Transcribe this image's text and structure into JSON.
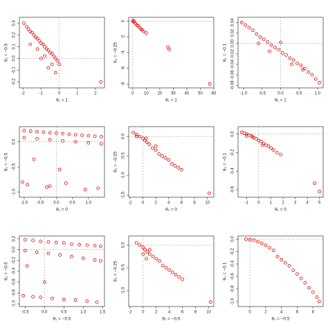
{
  "chart_data": [
    {
      "type": "scatter",
      "x_label": "θ₁ = 1",
      "y_label": "θ₂ = −0.5",
      "color": "#e00000",
      "hline": 0,
      "vline": 0,
      "x": [
        -1.95,
        -1.8,
        -1.7,
        -1.6,
        -1.5,
        -1.4,
        -1.3,
        -1.2,
        -1.1,
        -1.0,
        -0.9,
        -0.8,
        -0.7,
        -0.6,
        -0.5,
        -0.4,
        -0.3,
        -0.2,
        -0.1,
        0.0,
        -1.6,
        -1.2,
        -0.8,
        -0.4,
        -0.2,
        -1.0,
        -0.6,
        2.3
      ],
      "y": [
        0.3,
        0.27,
        0.25,
        0.23,
        0.22,
        0.2,
        0.18,
        0.17,
        0.15,
        0.13,
        0.12,
        0.1,
        0.08,
        0.07,
        0.05,
        0.04,
        0.02,
        0.0,
        -0.02,
        -0.05,
        0.12,
        0.08,
        0.02,
        -0.05,
        -0.12,
        0.0,
        -0.08,
        -0.2
      ],
      "xlim": [
        -2.2,
        2.5
      ],
      "xticks": [
        -2,
        -1,
        0,
        1,
        2
      ],
      "ylim": [
        -0.25,
        0.35
      ],
      "yticks": [
        -0.2,
        -0.1,
        {
          "value": 0,
          "label": "0.0"
        },
        0.1,
        0.2,
        0.3
      ]
    },
    {
      "type": "scatter",
      "x_label": "θ₁ = 1",
      "y_label": "θ₂ = −0.25",
      "color": "#e00000",
      "hline": 0,
      "vline": 0,
      "x": [
        0,
        0.5,
        1,
        2,
        3,
        4,
        5,
        6,
        7,
        8,
        10,
        26,
        27,
        57
      ],
      "y": [
        0,
        0.1,
        -0.1,
        -0.3,
        -0.5,
        -0.6,
        -0.8,
        -1,
        -1.1,
        -1.3,
        -1.5,
        -3.3,
        -3.6,
        -8
      ],
      "xlim": [
        -3,
        60
      ],
      "xticks": [
        0,
        10,
        20,
        30,
        40,
        50,
        60
      ],
      "ylim": [
        -8.5,
        0.5
      ],
      "yticks": [
        0,
        -2,
        -4,
        -6,
        -8
      ]
    },
    {
      "type": "scatter",
      "x_label": "θ₁ = 1",
      "y_label": "θ₂ = −0.1",
      "color": "#e00000",
      "hline": 0,
      "vline": 0,
      "x": [
        -1.05,
        -0.95,
        -0.85,
        -0.75,
        -0.65,
        -0.55,
        -0.45,
        -0.35,
        -0.25,
        -0.15,
        -0.05,
        0.05,
        0.15,
        0.25,
        0.35,
        0.45,
        0.55,
        0.65,
        0.75,
        0.85,
        0.95,
        1.05,
        -0.6,
        -0.3,
        0,
        0.3,
        0.6
      ],
      "y": [
        0.04,
        0.035,
        0.03,
        0.025,
        0.018,
        0.012,
        0.008,
        0.003,
        -0.003,
        -0.008,
        -0.012,
        -0.018,
        -0.022,
        -0.028,
        -0.032,
        -0.038,
        -0.042,
        -0.048,
        -0.055,
        -0.06,
        -0.068,
        -0.075,
        0.0,
        -0.015,
        0.002,
        -0.04,
        -0.05
      ],
      "xlim": [
        -1.15,
        1.15
      ],
      "xticks": [
        {
          "value": -1,
          "label": "-1.0"
        },
        -0.5,
        {
          "value": 0,
          "label": "0.0"
        },
        0.5,
        {
          "value": 1,
          "label": "1.0"
        }
      ],
      "ylim": [
        -0.085,
        0.05
      ],
      "yticks": [
        -0.08,
        -0.06,
        -0.04,
        -0.02,
        {
          "value": 0,
          "label": "0.00"
        },
        0.02,
        0.04
      ]
    },
    {
      "type": "scatter",
      "x_label": "θ₁ = 0",
      "y_label": "θ₂ = −0.5",
      "color": "#e00000",
      "hline": 0,
      "vline": 0,
      "x": [
        -1,
        -0.8,
        -0.6,
        -0.4,
        -0.2,
        0,
        0.2,
        0.4,
        0.6,
        0.8,
        1,
        1.2,
        1.4,
        -1,
        -0.6,
        -0.2,
        0.2,
        0.6,
        1,
        1.4,
        -1.05,
        -0.9,
        -0.3,
        -0.2,
        0.3,
        0.9,
        1.3,
        -0.7,
        0.1
      ],
      "y": [
        0.22,
        0.21,
        0.2,
        0.19,
        0.18,
        0.17,
        0.16,
        0.15,
        0.14,
        0.13,
        0.12,
        0.11,
        0.1,
        0.08,
        0.06,
        0.04,
        0.02,
        0.0,
        -0.02,
        -0.04,
        -0.8,
        -0.85,
        -0.9,
        -0.88,
        -0.82,
        -0.95,
        -0.92,
        -0.35,
        -0.55
      ],
      "xlim": [
        -1.15,
        1.5
      ],
      "xticks": [
        {
          "value": -1,
          "label": "-1.0"
        },
        -0.5,
        {
          "value": 0,
          "label": "0.0"
        },
        0.5,
        {
          "value": 1,
          "label": "1.0"
        }
      ],
      "ylim": [
        -1.1,
        0.3
      ],
      "yticks": [
        {
          "value": -1,
          "label": "-1.0"
        },
        -0.5,
        {
          "value": 0,
          "label": "0.0"
        }
      ]
    },
    {
      "type": "scatter",
      "x_label": "θ₁ = 0",
      "y_label": "θ₂ = −0.25",
      "color": "#e00000",
      "hline": 0,
      "vline": 0,
      "x": [
        -1.5,
        -1,
        -0.5,
        0,
        0.3,
        0.6,
        1,
        1.5,
        2,
        2.5,
        3,
        3.5,
        4,
        4.5,
        5,
        5.5,
        6,
        10.3,
        -1,
        0.5,
        2
      ],
      "y": [
        0.1,
        0.05,
        0,
        -0.05,
        -0.1,
        -0.15,
        -0.2,
        -0.3,
        -0.35,
        -0.45,
        -0.5,
        -0.55,
        -0.6,
        -0.7,
        -0.75,
        -0.8,
        -0.85,
        -1.45,
        0.0,
        -0.05,
        -0.25
      ],
      "xlim": [
        -2.2,
        11
      ],
      "xticks": [
        -2,
        0,
        2,
        4,
        6,
        8,
        10
      ],
      "ylim": [
        -1.55,
        0.25
      ],
      "yticks": [
        {
          "value": 0,
          "label": "0.0"
        },
        -0.5,
        {
          "value": -1,
          "label": "-1.0"
        },
        -1.5
      ]
    },
    {
      "type": "scatter",
      "x_label": "θ₁ = 0",
      "y_label": "θ₂ = −0.1",
      "color": "#e00000",
      "hline": 0,
      "vline": 0,
      "x": [
        -1.4,
        -1.2,
        -1,
        -0.8,
        -0.6,
        -0.4,
        -0.2,
        0,
        0.2,
        0.4,
        0.6,
        0.8,
        1,
        1.2,
        1.5,
        1.8,
        4.6,
        5,
        -1,
        -0.5,
        0.3
      ],
      "y": [
        0.02,
        0.01,
        0,
        -0.01,
        -0.02,
        -0.04,
        -0.05,
        -0.07,
        -0.08,
        -0.1,
        -0.12,
        -0.13,
        -0.15,
        -0.17,
        -0.2,
        -0.22,
        -0.53,
        -0.62,
        -0.02,
        -0.03,
        -0.12
      ],
      "xlim": [
        -1.7,
        5.3
      ],
      "xticks": [
        -1,
        0,
        1,
        2,
        3,
        4,
        5
      ],
      "ylim": [
        -0.68,
        0.08
      ],
      "yticks": [
        {
          "value": 0,
          "label": "0.0"
        },
        -0.2,
        -0.4,
        -0.6
      ]
    },
    {
      "type": "scatter",
      "x_label": "θ₁ = −0.5",
      "y_label": "θ₂ = −0.5",
      "color": "#e00000",
      "hline": 0,
      "vline": 0,
      "x": [
        -0.5,
        -0.3,
        -0.1,
        0.1,
        0.3,
        0.5,
        0.7,
        0.9,
        1.1,
        1.3,
        1.45,
        -0.5,
        -0.2,
        0.1,
        0.4,
        0.7,
        1.0,
        1.3,
        1.45,
        -0.55,
        -0.3,
        -0.1,
        0.2,
        0.5,
        0.8,
        1.1,
        1.35,
        -0.45,
        0.0
      ],
      "y": [
        0.18,
        0.17,
        0.15,
        0.14,
        0.13,
        0.12,
        0.1,
        0.09,
        0.08,
        0.07,
        0.06,
        -0.02,
        -0.05,
        -0.07,
        -0.1,
        -0.13,
        -0.16,
        -0.19,
        -0.21,
        -0.85,
        -0.87,
        -0.88,
        -0.9,
        -0.92,
        -0.93,
        -0.95,
        -0.97,
        -0.3,
        -0.6
      ],
      "xlim": [
        -0.65,
        1.55
      ],
      "xticks": [
        -0.5,
        {
          "value": 0,
          "label": "0.0"
        },
        0.5,
        {
          "value": 1,
          "label": "1.0"
        },
        1.5
      ],
      "ylim": [
        -1.05,
        0.25
      ],
      "yticks": [
        0.2,
        {
          "value": 0,
          "label": "0.0"
        },
        -0.2,
        -0.4,
        -0.6,
        -0.8,
        {
          "value": -1,
          "label": "-1.0"
        }
      ]
    },
    {
      "type": "scatter",
      "x_label": "θ₁ = −0.5",
      "y_label": "θ₂ = −0.25",
      "color": "#e00000",
      "hline": 0,
      "vline": 0,
      "x": [
        -1,
        -0.5,
        0,
        0.3,
        0.6,
        1,
        1.5,
        2,
        2.5,
        3,
        3.5,
        4,
        4.5,
        5,
        5.5,
        6,
        10.3,
        0,
        0.5,
        1
      ],
      "y": [
        0.05,
        0,
        -0.05,
        -0.1,
        -0.15,
        -0.2,
        -0.25,
        -0.3,
        -0.35,
        -0.45,
        -0.5,
        -0.55,
        -0.6,
        -0.65,
        -0.7,
        -0.75,
        -1.25,
        -0.2,
        -0.3,
        -0.1
      ],
      "xlim": [
        -2.2,
        10.8
      ],
      "xticks": [
        -2,
        0,
        2,
        4,
        6,
        8,
        10
      ],
      "ylim": [
        -1.35,
        0.2
      ],
      "yticks": [
        {
          "value": 0,
          "label": "0.0"
        },
        -0.5,
        {
          "value": -1,
          "label": "-1.0"
        }
      ]
    },
    {
      "type": "scatter",
      "x_label": "θ₁ = −0.5",
      "y_label": "θ₂ = −0.1",
      "color": "#e00000",
      "hline": 0,
      "vline": 0,
      "x": [
        -0.5,
        0,
        0.5,
        1,
        1.5,
        2,
        2.5,
        3,
        3.5,
        4,
        4.5,
        5,
        5.5,
        6,
        6.5,
        7,
        7.5,
        8,
        8.5,
        8.8
      ],
      "y": [
        0.0,
        -0.01,
        -0.02,
        -0.04,
        -0.07,
        -0.1,
        -0.14,
        -0.18,
        -0.28,
        -0.33,
        -0.38,
        -0.43,
        -0.5,
        -0.56,
        -0.63,
        -0.7,
        -0.78,
        -0.85,
        -0.93,
        -1.0
      ],
      "xlim": [
        -1.5,
        9.3
      ],
      "xticks": [
        0,
        2,
        4,
        6,
        8
      ],
      "ylim": [
        -1.08,
        0.05
      ],
      "yticks": [
        {
          "value": 0,
          "label": "0.0"
        },
        -0.2,
        -0.4,
        -0.6,
        -0.8,
        {
          "value": -1,
          "label": "-1.0"
        }
      ]
    }
  ]
}
